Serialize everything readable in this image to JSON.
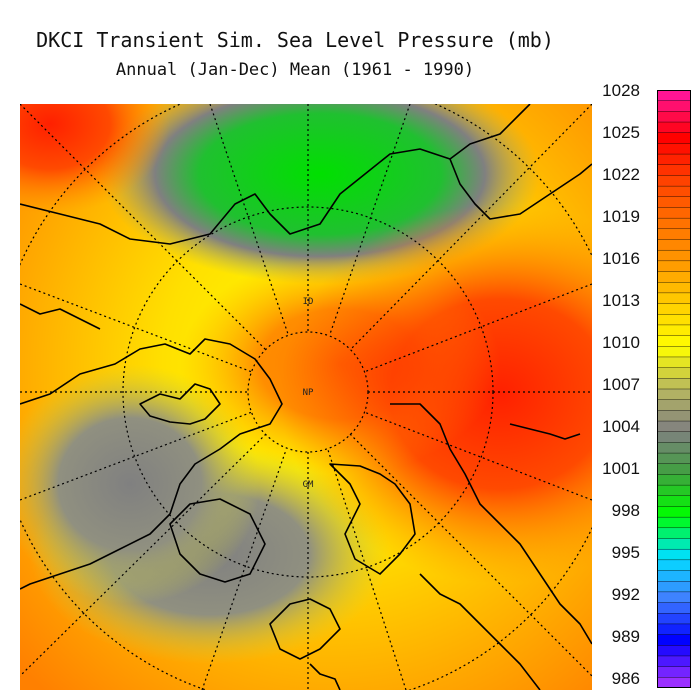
{
  "title": "DKCI Transient Sim. Sea Level Pressure (mb)",
  "subtitle": "Annual (Jan-Dec) Mean (1961 - 1990)",
  "map": {
    "projection": "north polar stereographic",
    "variable": "Sea Level Pressure",
    "units": "mb",
    "point_labels": [
      "ID",
      "NP",
      "GM"
    ]
  },
  "colorbar": {
    "ticks": [
      "1028",
      "1025",
      "1022",
      "1019",
      "1016",
      "1013",
      "1010",
      "1007",
      "1004",
      "1001",
      "998",
      "995",
      "992",
      "989",
      "986"
    ],
    "colors": [
      "#ff1493",
      "#ff0000",
      "#ff4000",
      "#ff7000",
      "#ff9900",
      "#ffd000",
      "#ffff00",
      "#b8b860",
      "#808080",
      "#40a040",
      "#00ff00",
      "#00e0ff",
      "#4080ff",
      "#0000ff",
      "#9b30ff"
    ]
  }
}
